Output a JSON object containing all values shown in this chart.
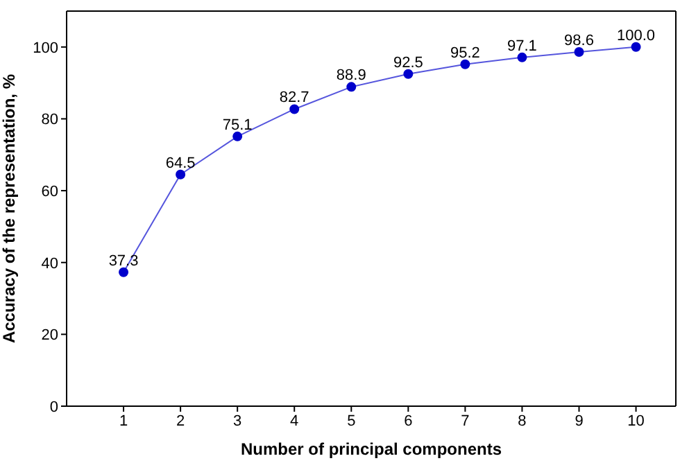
{
  "chart_data": {
    "type": "line",
    "xlabel": "Number of principal components",
    "ylabel": "Accuracy of the representation, %",
    "x": [
      1,
      2,
      3,
      4,
      5,
      6,
      7,
      8,
      9,
      10
    ],
    "series": [
      {
        "color": "#0000cc",
        "values": [
          37.3,
          64.5,
          75.1,
          82.7,
          88.9,
          92.5,
          95.2,
          97.1,
          98.6,
          100.0
        ],
        "value_labels": [
          "37.3",
          "64.5",
          "75.1",
          "82.7",
          "88.9",
          "92.5",
          "95.2",
          "97.1",
          "98.6",
          "100.0"
        ]
      }
    ],
    "xlim": [
      0,
      10.7
    ],
    "xticks": [
      1,
      2,
      3,
      4,
      5,
      6,
      7,
      8,
      9,
      10
    ],
    "ylim": [
      0,
      110
    ],
    "yticks": [
      0,
      20,
      40,
      60,
      80,
      100
    ],
    "marker": "circle",
    "line_style": "solid"
  }
}
